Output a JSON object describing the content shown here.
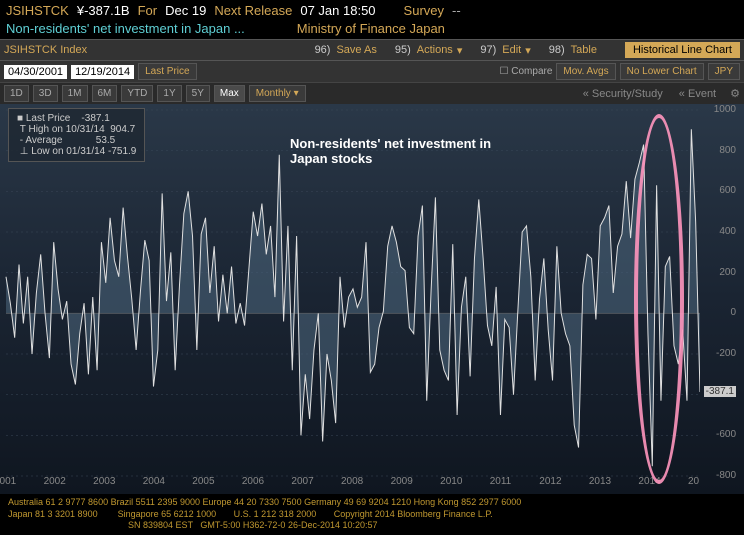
{
  "header": {
    "ticker": "JSIHSTCK",
    "price": "¥-387.1B",
    "for_label": "For",
    "for_date": "Dec 19",
    "next_label": "Next Release",
    "next_date": "07 Jan 18:50",
    "survey_label": "Survey",
    "survey_val": "--",
    "description": "Non-residents' net investment in Japan ...",
    "source": "Ministry of Finance Japan"
  },
  "toolbar": {
    "index_label": "JSIHSTCK Index",
    "date_from": "04/30/2001",
    "date_to": "12/19/2014",
    "last_price": "Last Price",
    "save_hk": "96)",
    "save": "Save As",
    "actions_hk": "95)",
    "actions": "Actions",
    "edit_hk": "97)",
    "edit": "Edit",
    "table_hk": "98)",
    "table": "Table",
    "chart_type": "Historical Line Chart",
    "compare": "Compare",
    "mov_avgs": "Mov. Avgs",
    "no_lower": "No Lower Chart",
    "ccy": "JPY",
    "periods": [
      "1D",
      "3D",
      "1M",
      "6M",
      "YTD",
      "1Y",
      "5Y",
      "Max"
    ],
    "freq": "Monthly",
    "security": "Security/Study",
    "event": "Event"
  },
  "stats": {
    "last_price_label": "Last Price",
    "last_price_val": "-387.1",
    "high_label": "High on 10/31/14",
    "high_val": "904.7",
    "avg_label": "Average",
    "avg_val": "53.5",
    "low_label": "Low on 01/31/14",
    "low_val": "-751.9"
  },
  "annotation": {
    "line1": "Non-residents' net investment in",
    "line2": "Japan stocks"
  },
  "chart": {
    "type": "line-area",
    "ylim": [
      -800,
      1000
    ],
    "yticks": [
      1000,
      800,
      600,
      400,
      200,
      0,
      -200,
      -400,
      -600,
      -800
    ],
    "current_val": -387.1,
    "years": [
      "2001",
      "2002",
      "2003",
      "2004",
      "2005",
      "2006",
      "2007",
      "2008",
      "2009",
      "2010",
      "2011",
      "2012",
      "2013",
      "2014",
      "20"
    ],
    "line_color": "#e0e0e0",
    "area_color": "#4a6278",
    "area_opacity": 0.6,
    "bg_gradient": [
      "#2a3848",
      "#0f1620"
    ],
    "grid_color": "#3a4858",
    "highlight_color": "#ff96be",
    "data": [
      180,
      50,
      -120,
      240,
      -50,
      180,
      -200,
      100,
      290,
      0,
      -220,
      350,
      120,
      -30,
      60,
      -250,
      -350,
      -100,
      50,
      -300,
      80,
      -280,
      350,
      150,
      470,
      260,
      180,
      520,
      280,
      70,
      -180,
      110,
      360,
      260,
      -360,
      -180,
      590,
      60,
      300,
      -280,
      140,
      490,
      600,
      380,
      -180,
      390,
      470,
      100,
      330,
      -40,
      190,
      0,
      230,
      -50,
      50,
      -60,
      220,
      500,
      380,
      540,
      290,
      430,
      80,
      780,
      -40,
      430,
      -280,
      380,
      -600,
      -300,
      -520,
      -180,
      0,
      -630,
      -200,
      -330,
      -540,
      180,
      -70,
      80,
      120,
      30,
      80,
      350,
      -290,
      -250,
      -70,
      10,
      330,
      430,
      350,
      230,
      210,
      -70,
      -100,
      380,
      530,
      -430,
      110,
      570,
      -180,
      -280,
      -330,
      340,
      -500,
      30,
      180,
      -310,
      270,
      560,
      270,
      -60,
      -160,
      130,
      -500,
      -30,
      -70,
      -400,
      10,
      400,
      430,
      180,
      -330,
      70,
      270,
      -80,
      -330,
      330,
      0,
      -100,
      -160,
      -550,
      -660,
      140,
      290,
      270,
      -30,
      430,
      470,
      530,
      100,
      330,
      390,
      650,
      370,
      660,
      740,
      830,
      -100,
      -752,
      630,
      -430,
      230,
      280,
      -160,
      -250,
      -80,
      -430,
      905,
      450,
      -387
    ]
  },
  "footer": {
    "l1": "Australia 61 2 9777 8600 Brazil 5511 2395 9000 Europe 44 20 7330 7500 Germany 49 69 9204 1210 Hong Kong 852 2977 6000",
    "l2": "Japan 81 3 3201 8900        Singapore 65 6212 1000       U.S. 1 212 318 2000       Copyright 2014 Bloomberg Finance L.P.",
    "l3": "                                                SN 839804 EST   GMT-5:00 H362-72-0 26-Dec-2014 10:20:57"
  }
}
